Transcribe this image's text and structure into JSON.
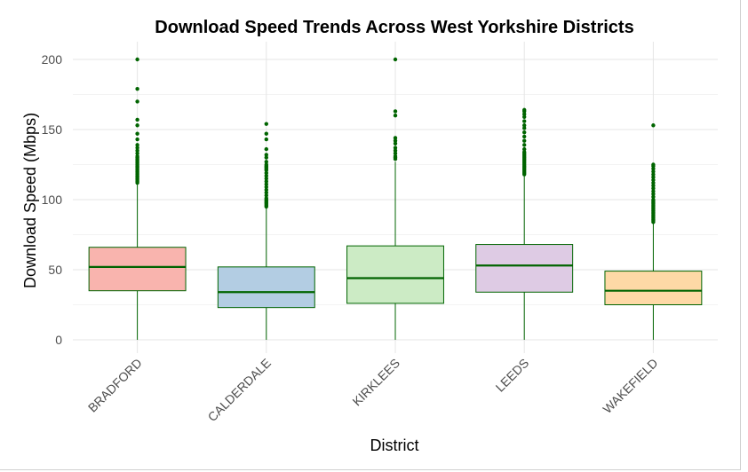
{
  "chart_data": {
    "type": "box",
    "title": "Download Speed Trends Across West Yorkshire Districts",
    "xlabel": "District",
    "ylabel": "Download Speed (Mbps)",
    "ylim": [
      -8,
      210
    ],
    "yticks": [
      0,
      50,
      100,
      150,
      200
    ],
    "grid": true,
    "line_color": "#006400",
    "categories": [
      "BRADFORD",
      "CALDERDALE",
      "KIRKLEES",
      "LEEDS",
      "WAKEFIELD"
    ],
    "boxes": [
      {
        "category": "BRADFORD",
        "fill": "#F9B4AE",
        "min": 0,
        "q1": 35,
        "median": 52,
        "q3": 66,
        "max": 111,
        "outliers": [
          112,
          113,
          114,
          115,
          116,
          117,
          118,
          119,
          120,
          121,
          122,
          123,
          124,
          125,
          126,
          127,
          128,
          129,
          130,
          131,
          133,
          135,
          137,
          139,
          143,
          147,
          153,
          157,
          170,
          179,
          200
        ]
      },
      {
        "category": "CALDERDALE",
        "fill": "#B3CDE3",
        "min": 0,
        "q1": 23,
        "median": 34,
        "q3": 52,
        "max": 94,
        "outliers": [
          95,
          96,
          97,
          98,
          99,
          100,
          101,
          103,
          105,
          107,
          109,
          111,
          113,
          115,
          117,
          119,
          121,
          122,
          123,
          124,
          125,
          127,
          130,
          132,
          136,
          143,
          147,
          154
        ]
      },
      {
        "category": "KIRKLEES",
        "fill": "#CCEBC5",
        "min": 0,
        "q1": 26,
        "median": 44,
        "q3": 67,
        "max": 127,
        "outliers": [
          129,
          130,
          131,
          133,
          135,
          137,
          140,
          142,
          144,
          160,
          163,
          200
        ]
      },
      {
        "category": "LEEDS",
        "fill": "#DECBE4",
        "min": 0,
        "q1": 34,
        "median": 53,
        "q3": 68,
        "max": 117,
        "outliers": [
          118,
          119,
          120,
          121,
          122,
          123,
          124,
          125,
          126,
          127,
          128,
          129,
          130,
          131,
          132,
          133,
          134,
          136,
          139,
          142,
          145,
          148,
          151,
          153,
          156,
          159,
          161,
          163,
          164
        ]
      },
      {
        "category": "WAKEFIELD",
        "fill": "#FED9A6",
        "min": 0,
        "q1": 25,
        "median": 35,
        "q3": 49,
        "max": 83,
        "outliers": [
          84,
          85,
          86,
          87,
          88,
          89,
          90,
          91,
          92,
          93,
          94,
          95,
          96,
          97,
          98,
          99,
          100,
          102,
          104,
          106,
          108,
          110,
          112,
          114,
          116,
          118,
          120,
          122,
          124,
          125,
          153
        ]
      }
    ]
  }
}
